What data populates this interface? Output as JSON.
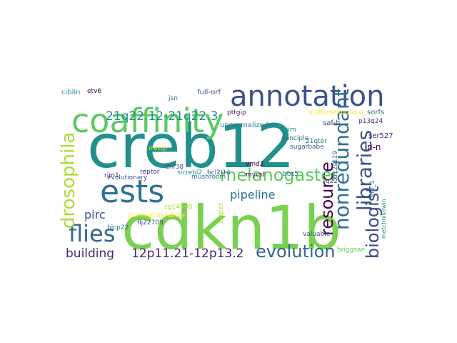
{
  "word_cloud": {
    "background": "#ffffff",
    "palette": {
      "purple": "#440154",
      "indigo": "#472f7d",
      "blue": "#3b528b",
      "steel": "#2c728e",
      "teal": "#21908d",
      "green": "#27ad81",
      "lime": "#5ec962",
      "yellowgreen": "#aadc32",
      "yellow": "#fde725"
    },
    "words": [
      {
        "text": "creb12",
        "color": "#21908d"
      },
      {
        "text": "cdkn1b",
        "color": "#7ad151"
      },
      {
        "text": "coaffinity",
        "color": "#5ec962"
      },
      {
        "text": "annotation",
        "color": "#3b528b"
      },
      {
        "text": "ests",
        "color": "#2c728e"
      },
      {
        "text": "flies",
        "color": "#31688e"
      },
      {
        "text": "drosophila",
        "color": "#aadc32"
      },
      {
        "text": "libraries",
        "color": "#3b528b"
      },
      {
        "text": "nonredundant",
        "color": "#2c728e"
      },
      {
        "text": "biologist",
        "color": "#3e4a89"
      },
      {
        "text": "resource",
        "color": "#440154"
      },
      {
        "text": "melanogaster",
        "color": "#5ec962"
      },
      {
        "text": "evolution",
        "color": "#31688e"
      },
      {
        "text": "21q22.12-21q22.3",
        "color": "#21908d"
      },
      {
        "text": "12p11.21-12p13.2",
        "color": "#482475"
      },
      {
        "text": "building",
        "color": "#482878"
      },
      {
        "text": "pipeline",
        "color": "#2c728e"
      },
      {
        "text": "pirc",
        "color": "#3b528b"
      },
      {
        "text": "unnormalized",
        "color": "#2c728e"
      },
      {
        "text": "pttgip",
        "color": "#481a6c"
      },
      {
        "text": "multiinstitutional",
        "color": "#fde725"
      },
      {
        "text": "saf-b",
        "color": "#3b528b"
      },
      {
        "text": "p13q24",
        "color": "#472f7d"
      },
      {
        "text": "ser527",
        "color": "#482878"
      },
      {
        "text": "sorfs",
        "color": "#2c728e"
      },
      {
        "text": "n-n",
        "color": "#440154"
      },
      {
        "text": "full-orf",
        "color": "#3b528b"
      },
      {
        "text": "ciblin",
        "color": "#21908d"
      },
      {
        "text": "etv6",
        "color": "#440154"
      },
      {
        "text": "mushroom",
        "color": "#2c728e"
      },
      {
        "text": "evolutionary",
        "color": "#3b528b"
      },
      {
        "text": "reptor",
        "color": "#482878"
      },
      {
        "text": "sugarbabe",
        "color": "#3b528b"
      },
      {
        "text": "panciple",
        "color": "#2c728e"
      },
      {
        "text": "dpim",
        "color": "#21908d"
      },
      {
        "text": "21qter",
        "color": "#2c728e"
      },
      {
        "text": "vmd2",
        "color": "#440154"
      },
      {
        "text": "bbs5",
        "color": "#31688e"
      },
      {
        "text": "mycsl",
        "color": "#440154"
      },
      {
        "text": "rrecql",
        "color": "#fde725"
      },
      {
        "text": "znf38",
        "color": "#3b528b"
      },
      {
        "text": "sicrebl2",
        "color": "#21908d"
      },
      {
        "text": "bcl2l14",
        "color": "#3b528b"
      },
      {
        "text": "rim1",
        "color": "#482878"
      },
      {
        "text": "norvegicusvalitus",
        "color": "#fde725"
      },
      {
        "text": "flj22709",
        "color": "#3b528b"
      },
      {
        "text": "bicp22",
        "color": "#2c728e"
      },
      {
        "text": "valuable",
        "color": "#3b528b"
      },
      {
        "text": "d12s119",
        "color": "#2c728e"
      },
      {
        "text": "q22",
        "color": "#3b528b"
      },
      {
        "text": "brip_1",
        "color": "#2c728e"
      },
      {
        "text": "metchnikowin",
        "color": "#21908d"
      },
      {
        "text": "briggsae",
        "color": "#5ec962"
      },
      {
        "text": "12qter",
        "color": "#aadc32"
      },
      {
        "text": "cg14708",
        "color": "#aadc32"
      },
      {
        "text": "jsn",
        "color": "#2c728e"
      }
    ]
  }
}
